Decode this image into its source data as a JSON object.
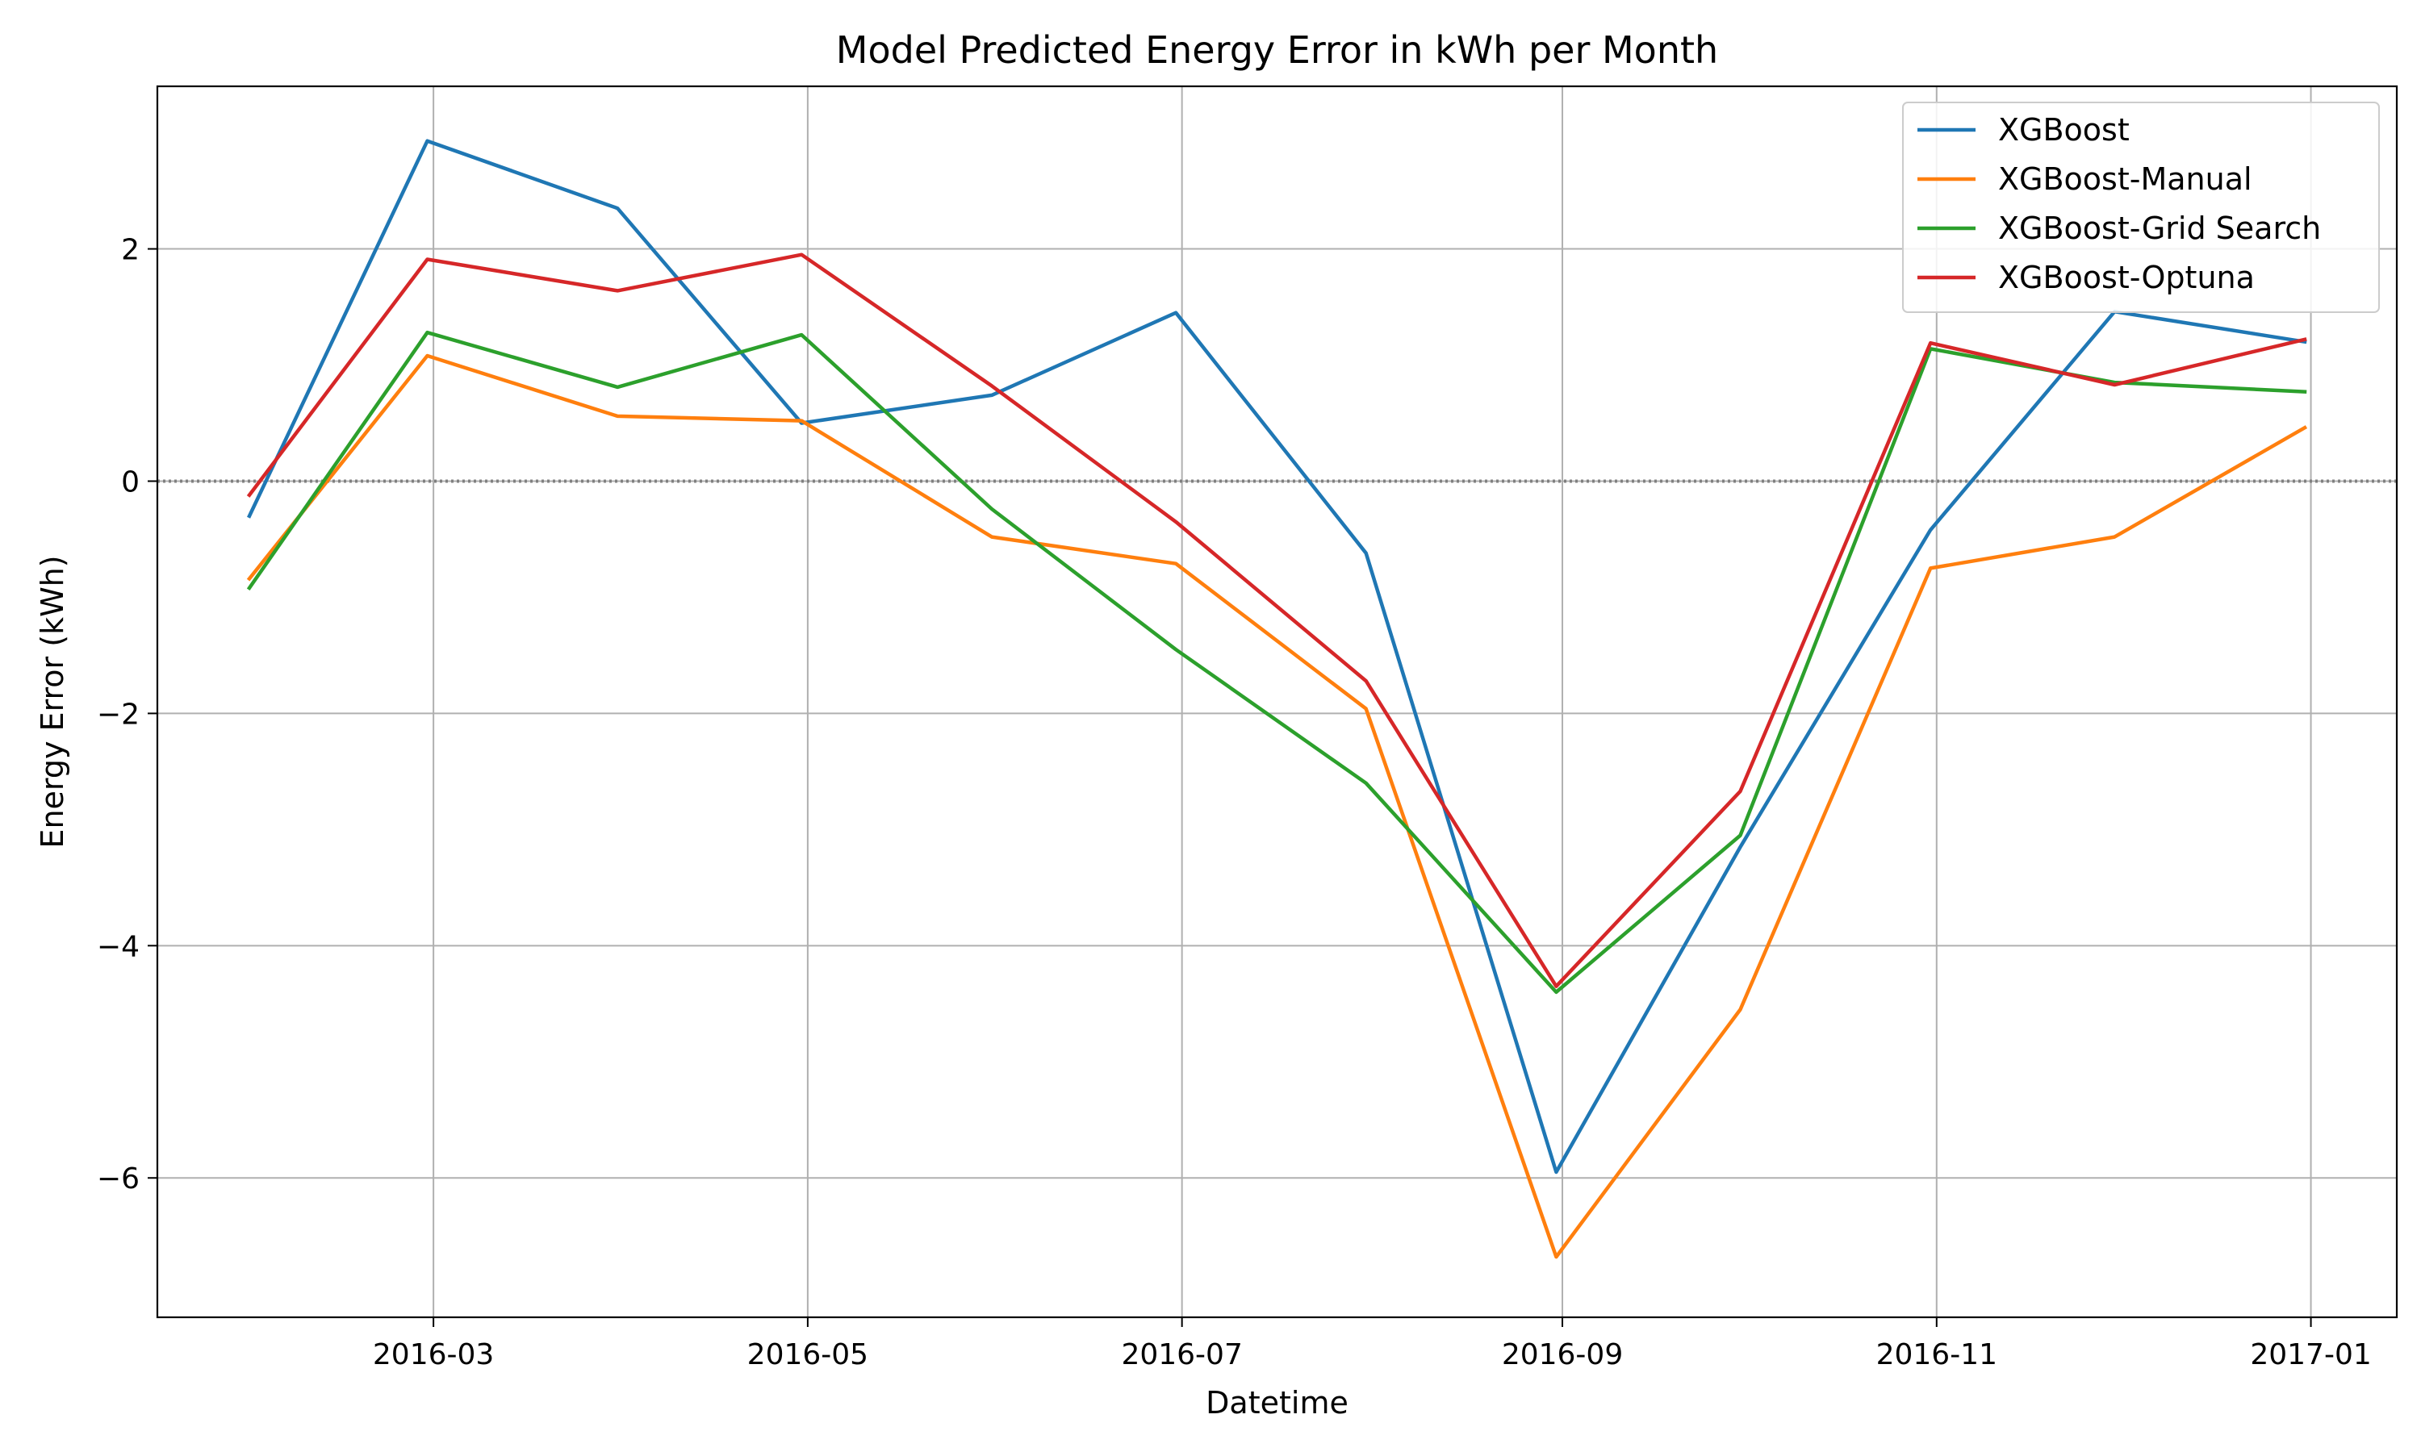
{
  "chart_data": {
    "type": "line",
    "title": "Model Predicted Energy Error in kWh per Month",
    "xlabel": "Datetime",
    "ylabel": "Energy Error (kWh)",
    "x": [
      "2016-01-31",
      "2016-02-29",
      "2016-03-31",
      "2016-04-30",
      "2016-05-31",
      "2016-06-30",
      "2016-07-31",
      "2016-08-31",
      "2016-09-30",
      "2016-10-31",
      "2016-11-30",
      "2016-12-31"
    ],
    "xlim": [
      "2016-01-16",
      "2017-01-15"
    ],
    "xticks": [
      "2016-03",
      "2016-05",
      "2016-07",
      "2016-09",
      "2016-11",
      "2017-01"
    ],
    "ylim": [
      -7.2,
      3.4
    ],
    "yticks": [
      2,
      0,
      -2,
      -4,
      -6
    ],
    "ytick_labels": [
      "2",
      "0",
      "−2",
      "−4",
      "−6"
    ],
    "grid": true,
    "reference_line": {
      "y": 0,
      "style": "dotted",
      "color": "#808080"
    },
    "legend_position": "top-right",
    "series": [
      {
        "name": "XGBoost",
        "color": "#1f77b4",
        "values": [
          -0.3,
          2.93,
          2.35,
          0.5,
          0.74,
          1.45,
          -0.62,
          -5.95,
          -3.15,
          -0.42,
          1.46,
          1.2
        ]
      },
      {
        "name": "XGBoost-Manual",
        "color": "#ff7f0e",
        "values": [
          -0.84,
          1.08,
          0.56,
          0.52,
          -0.48,
          -0.71,
          -1.96,
          -6.68,
          -4.55,
          -0.75,
          -0.48,
          0.46
        ]
      },
      {
        "name": "XGBoost-Grid Search",
        "color": "#2ca02c",
        "values": [
          -0.92,
          1.28,
          0.81,
          1.26,
          -0.24,
          -1.45,
          -2.6,
          -4.4,
          -3.05,
          1.14,
          0.85,
          0.77
        ]
      },
      {
        "name": "XGBoost-Optuna",
        "color": "#d62728",
        "values": [
          -0.12,
          1.91,
          1.64,
          1.95,
          0.82,
          -0.35,
          -1.72,
          -4.35,
          -2.67,
          1.19,
          0.83,
          1.22
        ]
      }
    ]
  }
}
